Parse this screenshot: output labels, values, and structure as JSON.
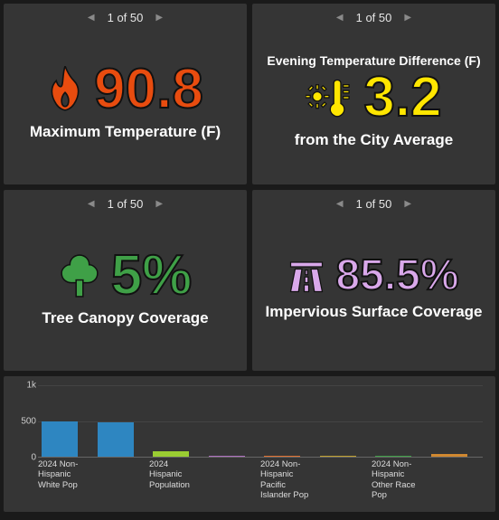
{
  "cards": [
    {
      "pager": {
        "text": "1 of 50"
      },
      "overline": null,
      "value": "90.8",
      "sub": "Maximum Temperature (F)",
      "color": "#e84c0f",
      "icon": "flame"
    },
    {
      "pager": {
        "text": "1 of 50"
      },
      "overline": "Evening Temperature Difference (F)",
      "value": "3.2",
      "sub": "from the City Average",
      "color": "#ffe600",
      "icon": "sun-thermometer"
    },
    {
      "pager": {
        "text": "1 of 50"
      },
      "overline": null,
      "value": "5%",
      "sub": "Tree Canopy Coverage",
      "color": "#3fa047",
      "icon": "tree"
    },
    {
      "pager": {
        "text": "1 of 50"
      },
      "overline": null,
      "value": "85.5%",
      "sub": "Impervious Surface Coverage",
      "color": "#d9a8ea",
      "icon": "highway"
    }
  ],
  "chart": {
    "type": "bar",
    "ymax": 1000,
    "yticks": [
      {
        "v": 0,
        "label": "0"
      },
      {
        "v": 500,
        "label": "500"
      },
      {
        "v": 1000,
        "label": "1k"
      }
    ],
    "categories": [
      {
        "label": "2024 Non-Hispanic White Pop",
        "value": 490,
        "color": "#2e86c1"
      },
      {
        "label": "",
        "value": 475,
        "color": "#2e86c1"
      },
      {
        "label": "2024 Hispanic Population",
        "value": 70,
        "color": "#9acd32"
      },
      {
        "label": "",
        "value": 15,
        "color": "#b070c0"
      },
      {
        "label": "2024 Non-Hispanic Pacific Islander Pop",
        "value": 10,
        "color": "#e07030"
      },
      {
        "label": "",
        "value": 8,
        "color": "#c0a030"
      },
      {
        "label": "2024 Non-Hispanic Other Race Pop",
        "value": 8,
        "color": "#3fa047"
      },
      {
        "label": "",
        "value": 40,
        "color": "#d08830"
      }
    ],
    "background": "#353535",
    "grid_color": "#444",
    "axis_color": "#666",
    "label_color": "#dddddd"
  }
}
